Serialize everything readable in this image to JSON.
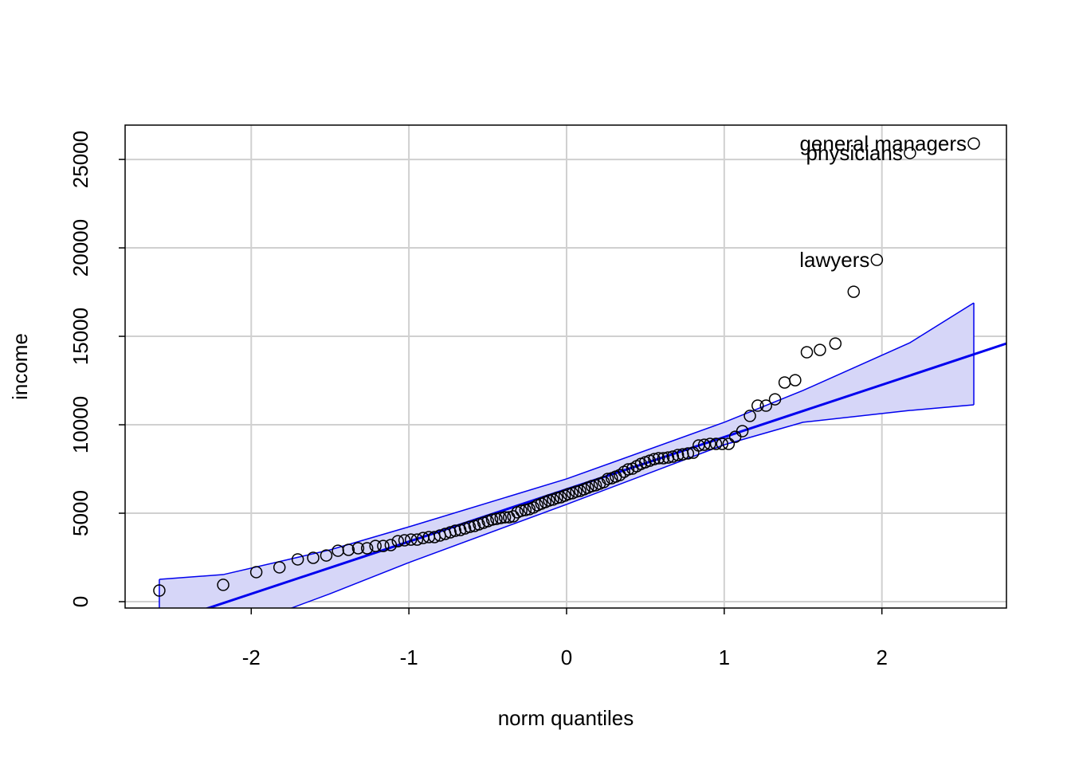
{
  "chart_data": {
    "type": "qqplot",
    "xlabel": "norm quantiles",
    "ylabel": "income",
    "xlim": [
      -2.8,
      2.79
    ],
    "ylim": [
      -360,
      26940
    ],
    "xticks": [
      -2,
      -1,
      0,
      1,
      2
    ],
    "yticks": [
      0,
      5000,
      10000,
      15000,
      20000,
      25000
    ],
    "grid": true,
    "point_color": "#000000",
    "line_color": "#0000ee",
    "band_fill": "#d6d6f8",
    "x": [
      -2.583,
      -2.178,
      -1.968,
      -1.821,
      -1.705,
      -1.607,
      -1.524,
      -1.45,
      -1.383,
      -1.322,
      -1.265,
      -1.212,
      -1.163,
      -1.115,
      -1.07,
      -1.028,
      -0.987,
      -0.948,
      -0.91,
      -0.873,
      -0.838,
      -0.803,
      -0.77,
      -0.737,
      -0.706,
      -0.674,
      -0.644,
      -0.614,
      -0.584,
      -0.556,
      -0.527,
      -0.499,
      -0.472,
      -0.445,
      -0.418,
      -0.391,
      -0.365,
      -0.338,
      -0.312,
      -0.287,
      -0.261,
      -0.236,
      -0.21,
      -0.185,
      -0.16,
      -0.135,
      -0.111,
      -0.086,
      -0.061,
      -0.037,
      -0.012,
      0.012,
      0.037,
      0.061,
      0.086,
      0.111,
      0.135,
      0.16,
      0.185,
      0.21,
      0.236,
      0.261,
      0.287,
      0.312,
      0.338,
      0.365,
      0.391,
      0.418,
      0.445,
      0.472,
      0.499,
      0.527,
      0.556,
      0.584,
      0.614,
      0.644,
      0.674,
      0.706,
      0.737,
      0.77,
      0.803,
      0.838,
      0.873,
      0.91,
      0.948,
      0.987,
      1.028,
      1.07,
      1.115,
      1.163,
      1.212,
      1.265,
      1.322,
      1.383,
      1.45,
      1.524,
      1.607,
      1.705,
      1.821,
      1.968,
      2.178,
      2.583
    ],
    "values": [
      630,
      950,
      1670,
      1940,
      2390,
      2480,
      2610,
      2880,
      2930,
      3020,
      3020,
      3150,
      3150,
      3200,
      3420,
      3470,
      3510,
      3510,
      3600,
      3650,
      3650,
      3740,
      3830,
      3920,
      4010,
      4050,
      4140,
      4230,
      4280,
      4370,
      4460,
      4550,
      4640,
      4680,
      4730,
      4770,
      4770,
      4820,
      5050,
      5140,
      5180,
      5230,
      5320,
      5450,
      5540,
      5630,
      5720,
      5770,
      5860,
      5900,
      5990,
      6080,
      6130,
      6220,
      6260,
      6350,
      6440,
      6530,
      6580,
      6670,
      6760,
      6940,
      6980,
      7070,
      7160,
      7340,
      7480,
      7520,
      7660,
      7790,
      7880,
      7970,
      8060,
      8110,
      8110,
      8150,
      8200,
      8290,
      8330,
      8380,
      8420,
      8830,
      8870,
      8920,
      8920,
      8920,
      8920,
      9320,
      9640,
      10500,
      11080,
      11080,
      11440,
      12390,
      12520,
      14100,
      14230,
      14590,
      17520,
      19320,
      25360,
      25900
    ],
    "point_labels": [
      null,
      null,
      null,
      null,
      null,
      null,
      null,
      null,
      null,
      null,
      null,
      null,
      null,
      null,
      null,
      null,
      null,
      null,
      null,
      null,
      null,
      null,
      null,
      null,
      null,
      null,
      null,
      null,
      null,
      null,
      null,
      null,
      null,
      null,
      null,
      null,
      null,
      null,
      null,
      null,
      null,
      null,
      null,
      null,
      null,
      null,
      null,
      null,
      null,
      null,
      null,
      null,
      null,
      null,
      null,
      null,
      null,
      null,
      null,
      null,
      null,
      null,
      null,
      null,
      null,
      null,
      null,
      null,
      null,
      null,
      null,
      null,
      null,
      null,
      null,
      null,
      null,
      null,
      null,
      null,
      null,
      null,
      null,
      null,
      null,
      null,
      null,
      null,
      null,
      null,
      null,
      null,
      null,
      null,
      null,
      null,
      null,
      null,
      null,
      "lawyers",
      "physicians",
      "general managers"
    ],
    "line": {
      "intercept": 6350,
      "slope": 2954
    },
    "band": {
      "x": [
        -2.583,
        -2.178,
        -1.5,
        -1,
        0,
        1,
        1.5,
        2.178,
        2.583
      ],
      "upper": [
        1260,
        1530,
        2930,
        4230,
        6940,
        10140,
        11940,
        14640,
        16890
      ],
      "lower": [
        -4000,
        -1800,
        450,
        2210,
        5500,
        8870,
        10140,
        10810,
        11130
      ]
    }
  }
}
